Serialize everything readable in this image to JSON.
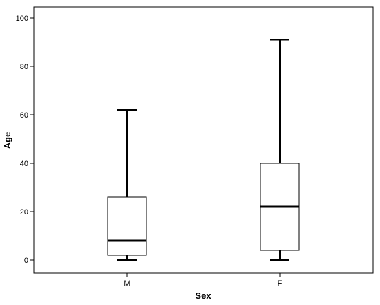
{
  "chart_data": {
    "type": "boxplot",
    "title": "",
    "xlabel": "Sex",
    "ylabel": "Age",
    "ylim": [
      -5,
      105
    ],
    "yticks": [
      0,
      20,
      40,
      60,
      80,
      100
    ],
    "categories": [
      "M",
      "F"
    ],
    "boxes": [
      {
        "category": "M",
        "min": 0,
        "q1": 2,
        "median": 8,
        "q3": 26,
        "max": 62
      },
      {
        "category": "F",
        "min": 0,
        "q1": 4,
        "median": 22,
        "q3": 40,
        "max": 91
      }
    ],
    "grid": false,
    "legend": "none"
  }
}
